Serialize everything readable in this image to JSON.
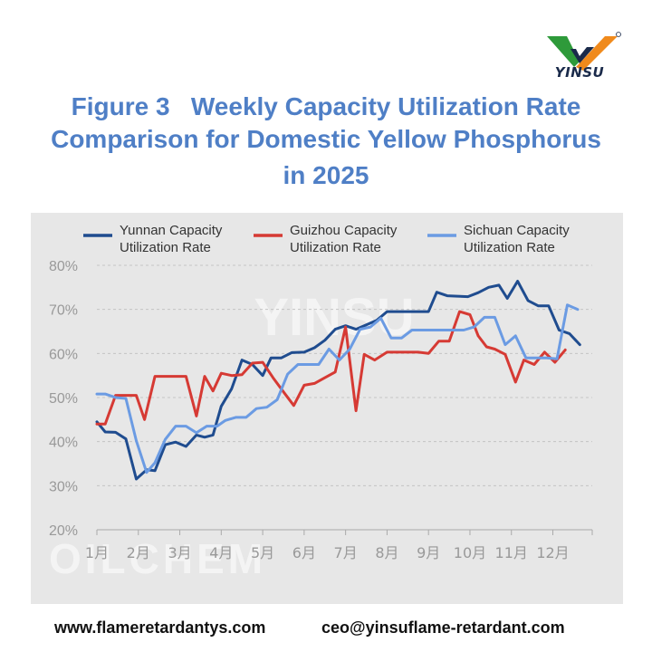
{
  "logo": {
    "text": "YINSU",
    "colors": {
      "green": "#2e9a3a",
      "orange": "#f08a1c",
      "dark": "#1a2a4a"
    }
  },
  "title": {
    "line1": "Figure 3   Weekly Capacity Utilization Rate",
    "line2": "Comparison for Domestic Yellow Phosphorus",
    "line3": "in 2025"
  },
  "watermarks": {
    "center": "YINSU",
    "bottom_left": "OILCHEM"
  },
  "footer": {
    "website": "www.flameretardantys.com",
    "email": "ceo@yinsuflame-retardant.com"
  },
  "chart_data": {
    "type": "line",
    "title": "Figure 3 Weekly Capacity Utilization Rate Comparison for Domestic Yellow Phosphorus in 2025",
    "xlabel": "",
    "ylabel": "",
    "ylim": [
      20,
      80
    ],
    "yticks": [
      20,
      30,
      40,
      50,
      60,
      70,
      80
    ],
    "ytick_labels": [
      "20%",
      "30%",
      "40%",
      "50%",
      "60%",
      "70%",
      "80%"
    ],
    "xlim": [
      1,
      12.95
    ],
    "xticks": [
      1,
      2,
      3,
      4,
      5,
      6,
      7,
      8,
      9,
      10,
      11,
      12
    ],
    "xtick_labels": [
      "1月",
      "2月",
      "3月",
      "4月",
      "5月",
      "6月",
      "7月",
      "8月",
      "9月",
      "10月",
      "11月",
      "12月"
    ],
    "grid": "horizontal dashed",
    "legend_position": "top",
    "series": [
      {
        "name": "Yunnan Capacity Utilization Rate",
        "color": "#1f4c8f",
        "points": [
          [
            1.0,
            44.5
          ],
          [
            1.2,
            42.2
          ],
          [
            1.45,
            42.1
          ],
          [
            1.7,
            40.6
          ],
          [
            1.95,
            31.5
          ],
          [
            2.2,
            33.6
          ],
          [
            2.4,
            33.4
          ],
          [
            2.65,
            39.3
          ],
          [
            2.9,
            39.9
          ],
          [
            3.15,
            38.9
          ],
          [
            3.4,
            41.5
          ],
          [
            3.6,
            41.0
          ],
          [
            3.8,
            41.5
          ],
          [
            4.0,
            48.0
          ],
          [
            4.25,
            52.0
          ],
          [
            4.5,
            58.5
          ],
          [
            4.75,
            57.5
          ],
          [
            5.0,
            55.0
          ],
          [
            5.2,
            59.0
          ],
          [
            5.45,
            59.0
          ],
          [
            5.7,
            60.2
          ],
          [
            6.0,
            60.3
          ],
          [
            6.25,
            61.3
          ],
          [
            6.5,
            63.0
          ],
          [
            6.75,
            65.5
          ],
          [
            7.0,
            66.3
          ],
          [
            7.25,
            65.5
          ],
          [
            7.5,
            66.5
          ],
          [
            7.75,
            67.5
          ],
          [
            8.0,
            69.5
          ],
          [
            8.25,
            69.5
          ],
          [
            8.5,
            69.5
          ],
          [
            8.75,
            69.5
          ],
          [
            9.0,
            69.5
          ],
          [
            9.2,
            73.9
          ],
          [
            9.45,
            73.1
          ],
          [
            9.7,
            73.0
          ],
          [
            9.95,
            72.9
          ],
          [
            10.2,
            73.8
          ],
          [
            10.45,
            75.0
          ],
          [
            10.7,
            75.5
          ],
          [
            10.9,
            72.5
          ],
          [
            11.15,
            76.4
          ],
          [
            11.4,
            72.0
          ],
          [
            11.65,
            70.8
          ],
          [
            11.9,
            70.8
          ],
          [
            12.15,
            65.3
          ],
          [
            12.4,
            64.5
          ],
          [
            12.65,
            62.0
          ]
        ]
      },
      {
        "name": "Guizhou Capacity Utilization Rate",
        "color": "#d63a34",
        "points": [
          [
            1.0,
            44.0
          ],
          [
            1.2,
            44.0
          ],
          [
            1.45,
            50.5
          ],
          [
            1.7,
            50.5
          ],
          [
            1.95,
            50.5
          ],
          [
            2.15,
            45.0
          ],
          [
            2.4,
            54.8
          ],
          [
            2.65,
            54.8
          ],
          [
            2.9,
            54.8
          ],
          [
            3.15,
            54.8
          ],
          [
            3.4,
            45.8
          ],
          [
            3.6,
            54.8
          ],
          [
            3.8,
            51.5
          ],
          [
            4.0,
            55.5
          ],
          [
            4.25,
            55.0
          ],
          [
            4.5,
            55.2
          ],
          [
            4.75,
            57.8
          ],
          [
            5.0,
            58.0
          ],
          [
            5.25,
            54.5
          ],
          [
            5.5,
            51.3
          ],
          [
            5.75,
            48.2
          ],
          [
            6.0,
            52.8
          ],
          [
            6.25,
            53.2
          ],
          [
            6.5,
            54.5
          ],
          [
            6.75,
            55.8
          ],
          [
            7.0,
            66.0
          ],
          [
            7.25,
            47.0
          ],
          [
            7.45,
            59.8
          ],
          [
            7.7,
            58.5
          ],
          [
            8.0,
            60.3
          ],
          [
            8.25,
            60.3
          ],
          [
            8.5,
            60.3
          ],
          [
            8.75,
            60.3
          ],
          [
            9.0,
            60.0
          ],
          [
            9.25,
            62.8
          ],
          [
            9.5,
            62.8
          ],
          [
            9.75,
            69.5
          ],
          [
            10.0,
            68.8
          ],
          [
            10.2,
            64.0
          ],
          [
            10.4,
            61.5
          ],
          [
            10.6,
            61.0
          ],
          [
            10.85,
            59.8
          ],
          [
            11.1,
            53.5
          ],
          [
            11.3,
            58.5
          ],
          [
            11.55,
            57.5
          ],
          [
            11.8,
            60.3
          ],
          [
            12.05,
            58.0
          ],
          [
            12.3,
            60.8
          ]
        ]
      },
      {
        "name": "Sichuan Capacity Utilization Rate",
        "color": "#6b9be3",
        "points": [
          [
            1.0,
            50.8
          ],
          [
            1.2,
            50.8
          ],
          [
            1.45,
            50.0
          ],
          [
            1.7,
            49.8
          ],
          [
            1.95,
            40.2
          ],
          [
            2.2,
            33.0
          ],
          [
            2.4,
            35.2
          ],
          [
            2.65,
            40.5
          ],
          [
            2.9,
            43.5
          ],
          [
            3.15,
            43.5
          ],
          [
            3.4,
            42.0
          ],
          [
            3.65,
            43.5
          ],
          [
            3.9,
            43.5
          ],
          [
            4.1,
            44.8
          ],
          [
            4.35,
            45.5
          ],
          [
            4.6,
            45.5
          ],
          [
            4.85,
            47.5
          ],
          [
            5.1,
            47.8
          ],
          [
            5.35,
            49.5
          ],
          [
            5.6,
            55.3
          ],
          [
            5.85,
            57.5
          ],
          [
            6.1,
            57.5
          ],
          [
            6.35,
            57.5
          ],
          [
            6.6,
            61.0
          ],
          [
            6.85,
            58.5
          ],
          [
            7.1,
            61.0
          ],
          [
            7.35,
            65.5
          ],
          [
            7.6,
            66.0
          ],
          [
            7.85,
            68.0
          ],
          [
            8.1,
            63.5
          ],
          [
            8.35,
            63.5
          ],
          [
            8.6,
            65.3
          ],
          [
            8.85,
            65.3
          ],
          [
            9.1,
            65.3
          ],
          [
            9.35,
            65.3
          ],
          [
            9.6,
            65.3
          ],
          [
            9.85,
            65.3
          ],
          [
            10.1,
            66.0
          ],
          [
            10.35,
            68.2
          ],
          [
            10.6,
            68.2
          ],
          [
            10.85,
            62.0
          ],
          [
            11.1,
            64.0
          ],
          [
            11.35,
            59.0
          ],
          [
            11.6,
            59.0
          ],
          [
            11.85,
            59.0
          ],
          [
            12.1,
            58.8
          ],
          [
            12.35,
            71.0
          ],
          [
            12.6,
            70.0
          ]
        ]
      }
    ]
  }
}
